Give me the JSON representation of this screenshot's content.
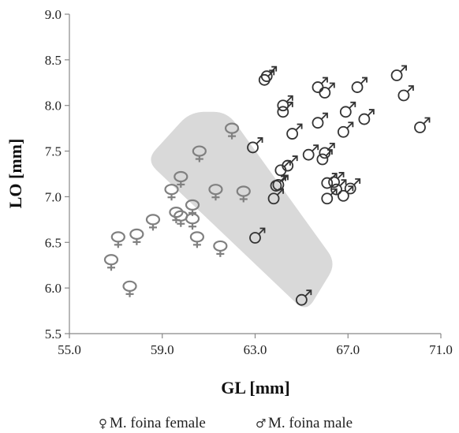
{
  "chart_data": {
    "type": "scatter",
    "xlabel": "GL [mm]",
    "ylabel": "LO [mm]",
    "xlim": [
      55.0,
      71.0
    ],
    "ylim": [
      5.5,
      9.0
    ],
    "x_ticks": [
      "55.0",
      "59.0",
      "63.0",
      "67.0",
      "71.0"
    ],
    "y_ticks": [
      "5.5",
      "6.0",
      "6.5",
      "7.0",
      "7.5",
      "8.0",
      "8.5",
      "9.0"
    ],
    "grid": false,
    "legend_position": "bottom",
    "highlight_region": {
      "color": "#d9d9d9",
      "corners": [
        [
          60.2,
          7.93
        ],
        [
          61.8,
          7.93
        ],
        [
          66.5,
          6.27
        ],
        [
          65.2,
          5.73
        ],
        [
          58.3,
          7.4
        ]
      ]
    },
    "series": [
      {
        "name": "M. foina female",
        "symbol": "female",
        "color": "#808080",
        "points": [
          {
            "x": 56.8,
            "y": 6.31
          },
          {
            "x": 57.1,
            "y": 6.56
          },
          {
            "x": 57.6,
            "y": 6.02
          },
          {
            "x": 57.9,
            "y": 6.59
          },
          {
            "x": 58.6,
            "y": 6.75
          },
          {
            "x": 59.4,
            "y": 7.08
          },
          {
            "x": 59.6,
            "y": 6.83
          },
          {
            "x": 59.8,
            "y": 6.79
          },
          {
            "x": 59.8,
            "y": 7.22
          },
          {
            "x": 60.3,
            "y": 6.91
          },
          {
            "x": 60.3,
            "y": 6.76
          },
          {
            "x": 60.5,
            "y": 6.56
          },
          {
            "x": 60.6,
            "y": 7.5
          },
          {
            "x": 61.3,
            "y": 7.08
          },
          {
            "x": 61.5,
            "y": 6.46
          },
          {
            "x": 62.0,
            "y": 7.75
          },
          {
            "x": 62.5,
            "y": 7.06
          }
        ]
      },
      {
        "name": "M. foina male",
        "symbol": "male",
        "color": "#333333",
        "points": [
          {
            "x": 62.9,
            "y": 7.54
          },
          {
            "x": 63.0,
            "y": 6.55
          },
          {
            "x": 63.4,
            "y": 8.28
          },
          {
            "x": 63.5,
            "y": 8.32
          },
          {
            "x": 63.8,
            "y": 6.98
          },
          {
            "x": 63.9,
            "y": 7.12
          },
          {
            "x": 64.0,
            "y": 7.13
          },
          {
            "x": 64.1,
            "y": 7.29
          },
          {
            "x": 64.2,
            "y": 7.93
          },
          {
            "x": 64.2,
            "y": 8.0
          },
          {
            "x": 64.4,
            "y": 7.34
          },
          {
            "x": 64.6,
            "y": 7.69
          },
          {
            "x": 65.0,
            "y": 5.87
          },
          {
            "x": 65.3,
            "y": 7.46
          },
          {
            "x": 65.7,
            "y": 7.81
          },
          {
            "x": 65.7,
            "y": 8.2
          },
          {
            "x": 65.9,
            "y": 7.41
          },
          {
            "x": 66.0,
            "y": 7.48
          },
          {
            "x": 66.0,
            "y": 8.14
          },
          {
            "x": 66.1,
            "y": 7.15
          },
          {
            "x": 66.1,
            "y": 6.98
          },
          {
            "x": 66.4,
            "y": 7.16
          },
          {
            "x": 66.5,
            "y": 7.08
          },
          {
            "x": 66.8,
            "y": 7.01
          },
          {
            "x": 66.8,
            "y": 7.71
          },
          {
            "x": 66.9,
            "y": 7.93
          },
          {
            "x": 67.1,
            "y": 7.09
          },
          {
            "x": 67.4,
            "y": 8.2
          },
          {
            "x": 67.7,
            "y": 7.85
          },
          {
            "x": 69.1,
            "y": 8.33
          },
          {
            "x": 69.4,
            "y": 8.11
          },
          {
            "x": 70.1,
            "y": 7.76
          }
        ]
      }
    ]
  },
  "legend": {
    "female_symbol": "♀",
    "female_label": "M. foina female",
    "male_symbol": "♂",
    "male_label": "M. foina male"
  }
}
